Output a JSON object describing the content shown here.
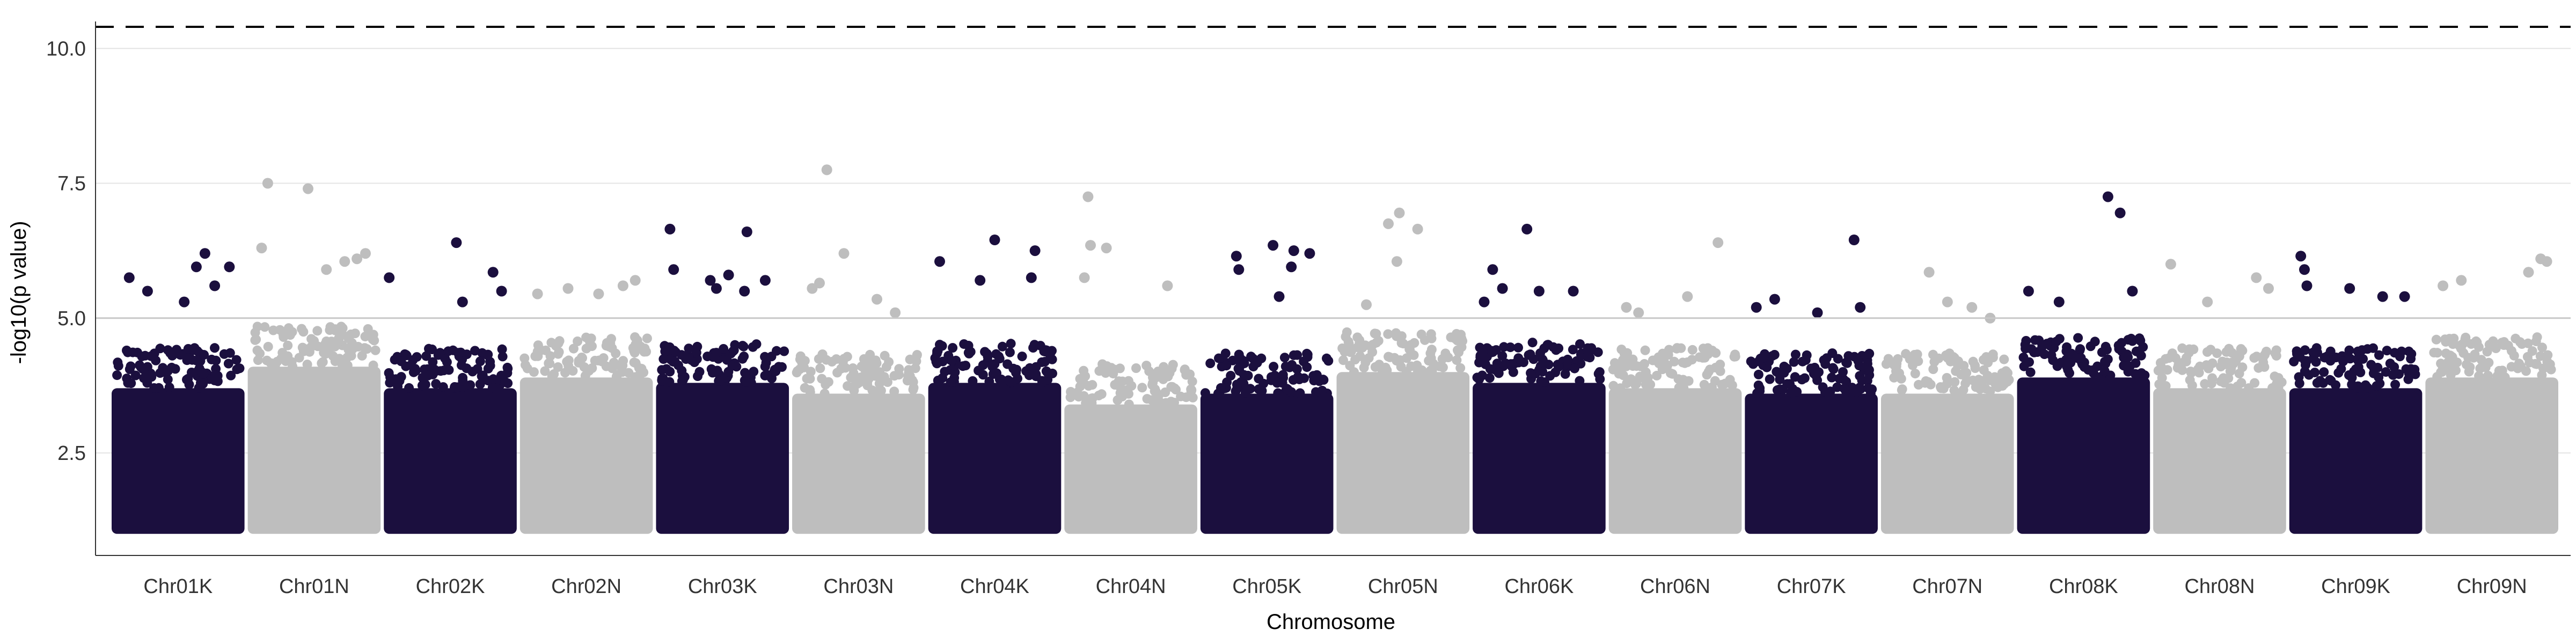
{
  "chart_data": {
    "type": "scatter",
    "subtype": "manhattan",
    "title": "",
    "xlabel": "Chromosome",
    "ylabel": "-log10(p value)",
    "ylim": [
      0.6,
      10.5
    ],
    "yticks": [
      "2.5",
      "5.0",
      "7.5",
      "10.0"
    ],
    "categories": [
      "Chr01K",
      "Chr01N",
      "Chr02K",
      "Chr02N",
      "Chr03K",
      "Chr03N",
      "Chr04K",
      "Chr04N",
      "Chr05K",
      "Chr05N",
      "Chr06K",
      "Chr06N",
      "Chr07K",
      "Chr07N",
      "Chr08K",
      "Chr08N",
      "Chr09K",
      "Chr09N"
    ],
    "colors": [
      "#1b0f3e",
      "#bebebe"
    ],
    "reference_lines": [
      {
        "y": 5.0,
        "style": "solid",
        "color": "#c8c8c8"
      },
      {
        "y": 10.4,
        "style": "dashed",
        "color": "#000000"
      }
    ],
    "grid": "horizontal major",
    "legend": "none",
    "series": [
      {
        "category": "Chr01K",
        "base_max": 4.3,
        "peaks": [
          [
            0.1,
            5.75
          ],
          [
            0.25,
            5.5
          ],
          [
            0.55,
            5.3
          ],
          [
            0.65,
            5.95
          ],
          [
            0.72,
            6.2
          ],
          [
            0.8,
            5.6
          ],
          [
            0.92,
            5.95
          ]
        ]
      },
      {
        "category": "Chr01N",
        "base_max": 4.7,
        "peaks": [
          [
            0.07,
            6.3
          ],
          [
            0.12,
            7.5
          ],
          [
            0.45,
            7.4
          ],
          [
            0.6,
            5.9
          ],
          [
            0.75,
            6.05
          ],
          [
            0.85,
            6.1
          ],
          [
            0.92,
            6.2
          ]
        ]
      },
      {
        "category": "Chr02K",
        "base_max": 4.3,
        "peaks": [
          [
            0.0,
            5.75
          ],
          [
            0.55,
            6.4
          ],
          [
            0.6,
            5.3
          ],
          [
            0.85,
            5.85
          ],
          [
            0.92,
            5.5
          ]
        ]
      },
      {
        "category": "Chr02N",
        "base_max": 4.5,
        "peaks": [
          [
            0.1,
            5.45
          ],
          [
            0.35,
            5.55
          ],
          [
            0.6,
            5.45
          ],
          [
            0.8,
            5.6
          ],
          [
            0.9,
            5.7
          ]
        ]
      },
      {
        "category": "Chr03K",
        "base_max": 4.4,
        "peaks": [
          [
            0.07,
            6.65
          ],
          [
            0.1,
            5.9
          ],
          [
            0.4,
            5.7
          ],
          [
            0.45,
            5.55
          ],
          [
            0.55,
            5.8
          ],
          [
            0.68,
            5.5
          ],
          [
            0.7,
            6.6
          ],
          [
            0.85,
            5.7
          ]
        ]
      },
      {
        "category": "Chr03N",
        "base_max": 4.2,
        "peaks": [
          [
            0.12,
            5.55
          ],
          [
            0.18,
            5.65
          ],
          [
            0.24,
            7.75
          ],
          [
            0.38,
            6.2
          ],
          [
            0.65,
            5.35
          ],
          [
            0.8,
            5.1
          ]
        ]
      },
      {
        "category": "Chr04K",
        "base_max": 4.4,
        "peaks": [
          [
            0.05,
            6.05
          ],
          [
            0.38,
            5.7
          ],
          [
            0.5,
            6.45
          ],
          [
            0.8,
            5.75
          ],
          [
            0.83,
            6.25
          ]
        ]
      },
      {
        "category": "Chr04N",
        "base_max": 4.0,
        "peaks": [
          [
            0.15,
            7.25
          ],
          [
            0.17,
            6.35
          ],
          [
            0.12,
            5.75
          ],
          [
            0.3,
            6.3
          ],
          [
            0.8,
            5.6
          ]
        ]
      },
      {
        "category": "Chr05K",
        "base_max": 4.2,
        "peaks": [
          [
            0.25,
            6.15
          ],
          [
            0.27,
            5.9
          ],
          [
            0.55,
            6.35
          ],
          [
            0.6,
            5.4
          ],
          [
            0.7,
            5.95
          ],
          [
            0.72,
            6.25
          ],
          [
            0.85,
            6.2
          ]
        ]
      },
      {
        "category": "Chr05N",
        "base_max": 4.6,
        "peaks": [
          [
            0.2,
            5.25
          ],
          [
            0.38,
            6.75
          ],
          [
            0.45,
            6.05
          ],
          [
            0.47,
            6.95
          ],
          [
            0.62,
            6.65
          ]
        ]
      },
      {
        "category": "Chr06K",
        "base_max": 4.4,
        "peaks": [
          [
            0.05,
            5.3
          ],
          [
            0.12,
            5.9
          ],
          [
            0.2,
            5.55
          ],
          [
            0.4,
            6.65
          ],
          [
            0.5,
            5.5
          ],
          [
            0.78,
            5.5
          ]
        ]
      },
      {
        "category": "Chr06N",
        "base_max": 4.3,
        "peaks": [
          [
            0.1,
            5.2
          ],
          [
            0.2,
            5.1
          ],
          [
            0.6,
            5.4
          ],
          [
            0.85,
            6.4
          ]
        ]
      },
      {
        "category": "Chr07K",
        "base_max": 4.2,
        "peaks": [
          [
            0.05,
            5.2
          ],
          [
            0.2,
            5.35
          ],
          [
            0.55,
            5.1
          ],
          [
            0.85,
            6.45
          ],
          [
            0.9,
            5.2
          ]
        ]
      },
      {
        "category": "Chr07N",
        "base_max": 4.2,
        "peaks": [
          [
            0.35,
            5.85
          ],
          [
            0.5,
            5.3
          ],
          [
            0.7,
            5.2
          ],
          [
            0.85,
            5.0
          ]
        ]
      },
      {
        "category": "Chr08K",
        "base_max": 4.5,
        "peaks": [
          [
            0.05,
            5.5
          ],
          [
            0.3,
            5.3
          ],
          [
            0.7,
            7.25
          ],
          [
            0.8,
            6.95
          ],
          [
            0.9,
            5.5
          ]
        ]
      },
      {
        "category": "Chr08N",
        "base_max": 4.3,
        "peaks": [
          [
            0.1,
            6.0
          ],
          [
            0.4,
            5.3
          ],
          [
            0.8,
            5.75
          ],
          [
            0.9,
            5.55
          ]
        ]
      },
      {
        "category": "Chr09K",
        "base_max": 4.3,
        "peaks": [
          [
            0.05,
            6.15
          ],
          [
            0.08,
            5.9
          ],
          [
            0.1,
            5.6
          ],
          [
            0.45,
            5.55
          ],
          [
            0.72,
            5.4
          ],
          [
            0.9,
            5.4
          ]
        ]
      },
      {
        "category": "Chr09N",
        "base_max": 4.5,
        "peaks": [
          [
            0.1,
            5.6
          ],
          [
            0.25,
            5.7
          ],
          [
            0.8,
            5.85
          ],
          [
            0.9,
            6.1
          ],
          [
            0.95,
            6.05
          ]
        ]
      }
    ]
  }
}
